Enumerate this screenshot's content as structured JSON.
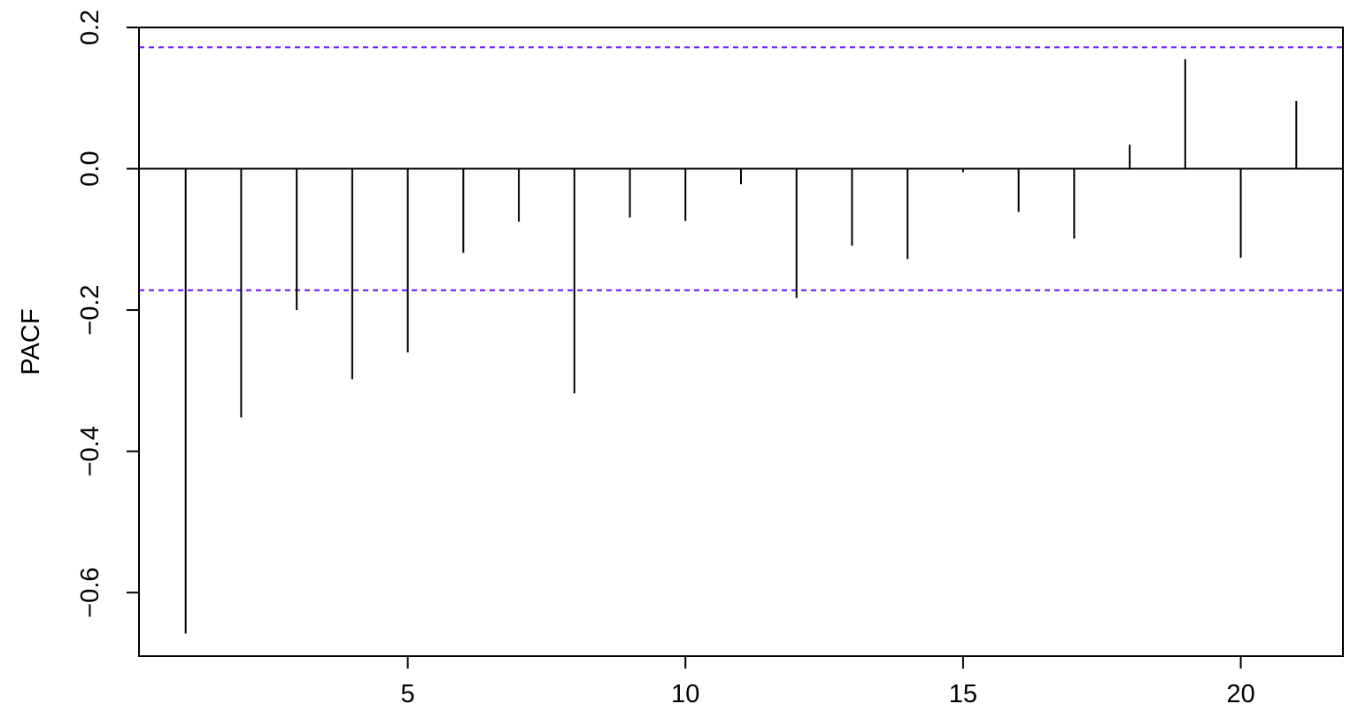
{
  "chart_data": {
    "type": "bar",
    "title": "",
    "xlabel": "",
    "ylabel": "PACF",
    "x": [
      1,
      2,
      3,
      4,
      5,
      6,
      7,
      8,
      9,
      10,
      11,
      12,
      13,
      14,
      15,
      16,
      17,
      18,
      19,
      20,
      21
    ],
    "values": [
      -0.658,
      -0.352,
      -0.2,
      -0.298,
      -0.26,
      -0.119,
      -0.075,
      -0.318,
      -0.069,
      -0.074,
      -0.022,
      -0.183,
      -0.109,
      -0.128,
      -0.005,
      -0.061,
      -0.099,
      0.034,
      0.155,
      -0.126,
      0.096
    ],
    "xlim": [
      0.16,
      21.84
    ],
    "ylim": [
      -0.69,
      0.2
    ],
    "xticks": [
      5,
      10,
      15,
      20
    ],
    "xtick_labels": [
      "5",
      "10",
      "15",
      "20"
    ],
    "yticks": [
      -0.6,
      -0.4,
      -0.2,
      0.0,
      0.2
    ],
    "ytick_labels": [
      "−0.6",
      "−0.4",
      "−0.2",
      "0.0",
      "0.2"
    ],
    "confidence_bound": 0.172,
    "zero_line": true,
    "grid": false,
    "colors": {
      "bars": "#000000",
      "confidence": "#6a0dff",
      "axis": "#000000"
    }
  }
}
